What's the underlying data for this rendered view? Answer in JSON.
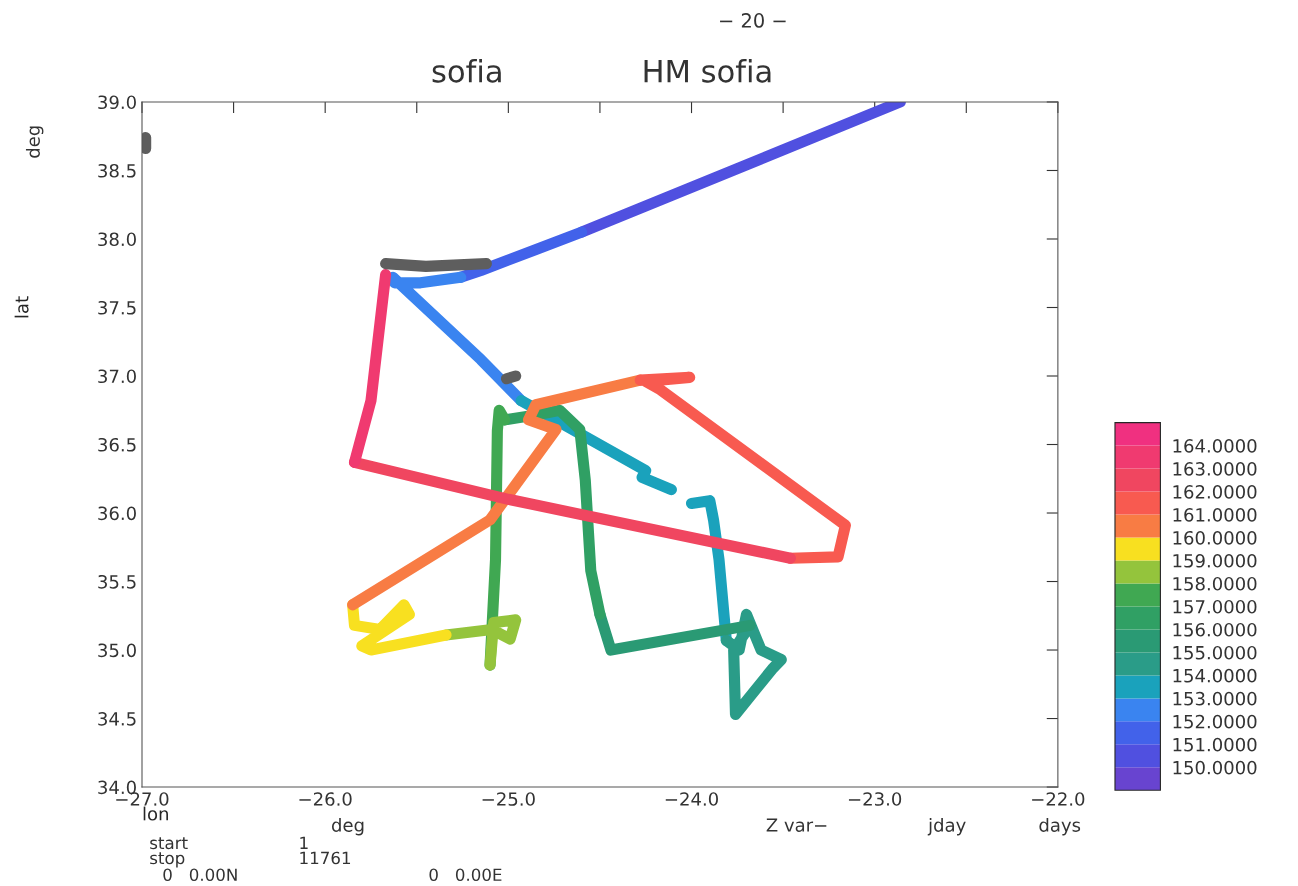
{
  "chart_data": {
    "type": "line",
    "title": "sofia",
    "subtitle": "HM sofia",
    "xlabel": "lon",
    "ylabel": "lat",
    "annotations": [
      "− 20 −",
      "deg",
      "deg",
      "Z var−",
      "jday",
      "days",
      "start",
      "1",
      "stop",
      "11761",
      "0   0.00N",
      "0   0.00E"
    ],
    "xlim": [
      -27,
      -22
    ],
    "ylim": [
      34,
      39
    ],
    "xticks": [
      {
        "value": -27,
        "label": "−27.0"
      },
      {
        "value": -26.5,
        "label": null
      },
      {
        "value": -26,
        "label": "−26.0"
      },
      {
        "value": -25.5,
        "label": null
      },
      {
        "value": -25,
        "label": "−25.0"
      },
      {
        "value": -24.5,
        "label": null
      },
      {
        "value": -24,
        "label": "−24.0"
      },
      {
        "value": -23.5,
        "label": null
      },
      {
        "value": -23,
        "label": "−23.0"
      },
      {
        "value": -22.5,
        "label": null
      },
      {
        "value": -22,
        "label": "−22.0"
      }
    ],
    "yticks": [
      {
        "value": 34,
        "label": "34.0"
      },
      {
        "value": 34.5,
        "label": "34.5"
      },
      {
        "value": 35,
        "label": "35.0"
      },
      {
        "value": 35.5,
        "label": "35.5"
      },
      {
        "value": 36,
        "label": "36.0"
      },
      {
        "value": 36.5,
        "label": "36.5"
      },
      {
        "value": 37,
        "label": "37.0"
      },
      {
        "value": 37.5,
        "label": "37.5"
      },
      {
        "value": 38,
        "label": "38.0"
      },
      {
        "value": 38.5,
        "label": "38.5"
      },
      {
        "value": 39,
        "label": "39.0"
      }
    ],
    "clim": [
      149,
      165
    ],
    "cticks": [
      {
        "value": 150,
        "label": "150.0000"
      },
      {
        "value": 151,
        "label": "151.0000"
      },
      {
        "value": 152,
        "label": "152.0000"
      },
      {
        "value": 153,
        "label": "153.0000"
      },
      {
        "value": 154,
        "label": "154.0000"
      },
      {
        "value": 155,
        "label": "155.0000"
      },
      {
        "value": 156,
        "label": "156.0000"
      },
      {
        "value": 157,
        "label": "157.0000"
      },
      {
        "value": 158,
        "label": "158.0000"
      },
      {
        "value": 159,
        "label": "159.0000"
      },
      {
        "value": 160,
        "label": "160.0000"
      },
      {
        "value": 161,
        "label": "161.0000"
      },
      {
        "value": 162,
        "label": "162.0000"
      },
      {
        "value": 163,
        "label": "163.0000"
      },
      {
        "value": 164,
        "label": "164.0000"
      }
    ],
    "colors": [
      "#6844d0",
      "#5050e0",
      "#4262ea",
      "#3a84f0",
      "#1aa2bc",
      "#2a9c88",
      "#2a9a74",
      "#30a064",
      "#40a852",
      "#94c43c",
      "#f8e020",
      "#f87c44",
      "#f85a50",
      "#f04660",
      "#f03a70",
      "#f03080"
    ],
    "grid": false,
    "series": [
      {
        "color": "#5050e0",
        "x": [
          -22.86,
          -24.6
        ],
        "values": [
          39.0,
          38.05
        ]
      },
      {
        "color": "#4262ea",
        "x": [
          -24.6,
          -25.15,
          -25.26
        ],
        "values": [
          38.05,
          37.77,
          37.72
        ]
      },
      {
        "color": "#3a84f0",
        "x": [
          -25.26,
          -25.48,
          -25.62,
          -25.63,
          -25.15,
          -24.93
        ],
        "values": [
          37.72,
          37.68,
          37.68,
          37.72,
          37.12,
          36.82
        ]
      },
      {
        "color": "#1aa2bc",
        "x": [
          -24.93,
          -24.25,
          -24.27,
          -24.11,
          null,
          -24.0,
          -23.9,
          -23.88,
          -23.85,
          -23.81
        ],
        "values": [
          36.82,
          36.31,
          36.26,
          36.17,
          null,
          36.07,
          36.09,
          35.95,
          35.66,
          35.07
        ]
      },
      {
        "color": "#2a9c88",
        "x": [
          -23.81,
          -23.74,
          -23.7,
          -23.62,
          -23.51,
          -23.56,
          -23.76,
          -23.77,
          -23.68
        ],
        "values": [
          35.07,
          35.0,
          35.26,
          35.0,
          34.93,
          34.86,
          34.53,
          35.0,
          35.18
        ]
      },
      {
        "color": "#2a9a74",
        "x": [
          -23.68,
          -24.44,
          -24.5
        ],
        "values": [
          35.18,
          35.0,
          35.26
        ]
      },
      {
        "color": "#30a064",
        "x": [
          -24.5,
          -24.55,
          -24.58,
          -24.61,
          -24.72,
          -24.83,
          -25.02
        ],
        "values": [
          35.26,
          35.58,
          36.24,
          36.61,
          36.75,
          36.72,
          36.68
        ]
      },
      {
        "color": "#40a852",
        "x": [
          -25.02,
          -25.05,
          -25.06,
          -25.07,
          -25.1
        ],
        "values": [
          36.68,
          36.75,
          36.6,
          35.66,
          34.89
        ]
      },
      {
        "color": "#94c43c",
        "x": [
          -25.1,
          -25.08,
          -24.96,
          -24.99,
          -25.09,
          -25.34
        ],
        "values": [
          34.89,
          35.2,
          35.22,
          35.08,
          35.15,
          35.11
        ]
      },
      {
        "color": "#f8e020",
        "x": [
          -25.34,
          -25.75,
          -25.8,
          -25.54,
          -25.57,
          -25.7,
          -25.84,
          -25.85
        ],
        "values": [
          35.11,
          35.0,
          35.03,
          35.26,
          35.33,
          35.15,
          35.18,
          35.33
        ]
      },
      {
        "color": "#f87c44",
        "x": [
          -25.85,
          -25.1,
          -24.74,
          -24.89,
          -24.85,
          -24.28
        ],
        "values": [
          35.33,
          35.95,
          36.61,
          36.68,
          36.79,
          36.97
        ]
      },
      {
        "color": "#f85a50",
        "x": [
          -24.28,
          -24.01,
          -24.25,
          -24.17,
          -23.16,
          -23.2,
          -23.46
        ],
        "values": [
          36.97,
          36.99,
          36.96,
          36.9,
          35.91,
          35.68,
          35.67
        ]
      },
      {
        "color": "#f04660",
        "x": [
          -23.46,
          -25.0,
          -25.84
        ],
        "values": [
          35.67,
          36.1,
          36.37
        ]
      },
      {
        "color": "#f03a70",
        "x": [
          -25.84,
          -25.75,
          -25.67
        ],
        "values": [
          36.37,
          36.82,
          37.74
        ]
      },
      {
        "color": "#5e5e5e",
        "x": [
          -25.67,
          -25.45,
          -25.12,
          null,
          -25.01,
          -24.96,
          null,
          -26.98,
          -26.98
        ],
        "values": [
          37.82,
          37.8,
          37.82,
          null,
          36.98,
          37.0,
          null,
          38.74,
          38.66
        ]
      }
    ]
  }
}
